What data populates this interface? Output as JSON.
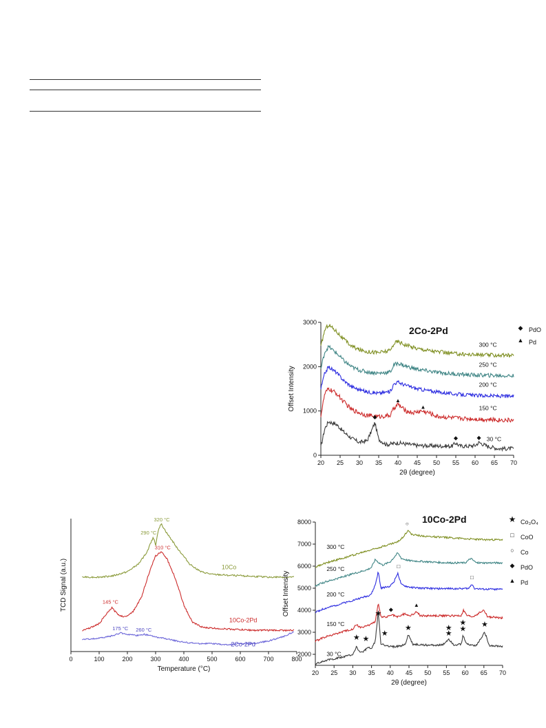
{
  "chart_data": [
    {
      "type": "line",
      "panel_title": "2Co-2Pd",
      "xlabel": "2θ (degree)",
      "ylabel": "Offset Intensity",
      "xlim": [
        20,
        70
      ],
      "ylim": [
        0,
        3000
      ],
      "x_ticks": [
        20,
        25,
        30,
        35,
        40,
        45,
        50,
        55,
        60,
        65,
        70
      ],
      "y_ticks": [
        0,
        1000,
        2000,
        3000
      ],
      "legend": [
        {
          "symbol": "◆",
          "label": "PdO"
        },
        {
          "symbol": "▲",
          "label": "Pd"
        }
      ],
      "series": [
        {
          "name": "30 °C",
          "color": "#3a3a3a",
          "baseline": 180,
          "noise": 45,
          "x": [
            20,
            21,
            22,
            24,
            26,
            28,
            30,
            32,
            33,
            34,
            35,
            37,
            40,
            45,
            50,
            54,
            55,
            56,
            58,
            60,
            61,
            63,
            66,
            70
          ],
          "y": [
            180,
            600,
            760,
            700,
            520,
            380,
            290,
            330,
            520,
            740,
            360,
            240,
            280,
            220,
            210,
            205,
            280,
            210,
            205,
            220,
            290,
            210,
            150,
            150
          ]
        },
        {
          "name": "150 °C",
          "color": "#cc2a2a",
          "baseline": 760,
          "noise": 50,
          "x": [
            20,
            21,
            22,
            24,
            26,
            28,
            30,
            32,
            35,
            38,
            39,
            40,
            42,
            44,
            46,
            48,
            50,
            55,
            60,
            65,
            70
          ],
          "y": [
            900,
            1380,
            1500,
            1400,
            1200,
            1030,
            960,
            900,
            870,
            900,
            1070,
            1150,
            1000,
            960,
            1000,
            960,
            880,
            840,
            820,
            800,
            790
          ]
        },
        {
          "name": "200 °C",
          "color": "#2c2ce0",
          "baseline": 1300,
          "noise": 40,
          "x": [
            20,
            21,
            22,
            24,
            26,
            28,
            30,
            32,
            35,
            38,
            39,
            40,
            42,
            45,
            50,
            55,
            60,
            65,
            70
          ],
          "y": [
            1500,
            1850,
            2000,
            1870,
            1680,
            1550,
            1480,
            1430,
            1400,
            1440,
            1620,
            1650,
            1580,
            1500,
            1430,
            1380,
            1350,
            1340,
            1330
          ]
        },
        {
          "name": "250 °C",
          "color": "#3f8585",
          "baseline": 1750,
          "noise": 45,
          "x": [
            20,
            21,
            22,
            24,
            26,
            28,
            30,
            32,
            35,
            38,
            39,
            40,
            42,
            45,
            50,
            55,
            60,
            65,
            70
          ],
          "y": [
            1950,
            2330,
            2450,
            2310,
            2130,
            1990,
            1920,
            1880,
            1850,
            1880,
            2040,
            2080,
            2010,
            1940,
            1870,
            1830,
            1810,
            1800,
            1790
          ]
        },
        {
          "name": "300 °C",
          "color": "#7f8f22",
          "baseline": 2200,
          "noise": 45,
          "x": [
            20,
            21,
            22,
            24,
            26,
            28,
            30,
            32,
            35,
            38,
            39,
            40,
            42,
            45,
            50,
            55,
            60,
            65,
            70
          ],
          "y": [
            2450,
            2830,
            2950,
            2800,
            2610,
            2460,
            2380,
            2340,
            2320,
            2360,
            2530,
            2570,
            2490,
            2410,
            2340,
            2290,
            2270,
            2260,
            2250
          ]
        }
      ],
      "temperature_labels": [
        {
          "text": "300 °C",
          "x": 61,
          "y": 2450
        },
        {
          "text": "250 °C",
          "x": 61,
          "y": 2000
        },
        {
          "text": "200 °C",
          "x": 61,
          "y": 1550
        },
        {
          "text": "150 °C",
          "x": 61,
          "y": 1020
        },
        {
          "text": "30 °C",
          "x": 63,
          "y": 320
        }
      ],
      "markers": [
        {
          "symbol": "◆",
          "x": 34,
          "y": 820
        },
        {
          "symbol": "◆",
          "x": 55,
          "y": 350
        },
        {
          "symbol": "◆",
          "x": 61,
          "y": 360
        },
        {
          "symbol": "▲",
          "x": 40,
          "y": 1200
        },
        {
          "symbol": "▲",
          "x": 46.5,
          "y": 1050
        }
      ]
    },
    {
      "type": "line",
      "xlabel": "Temperature (°C)",
      "ylabel": "TCD Signal (a.u.)",
      "xlim": [
        0,
        800
      ],
      "ylim": [
        0,
        100
      ],
      "x_ticks": [
        0,
        100,
        200,
        300,
        400,
        500,
        600,
        700,
        800
      ],
      "series": [
        {
          "name": "10Co",
          "color": "#8a9a3a",
          "noise": 0.6,
          "x": [
            40,
            100,
            150,
            200,
            240,
            270,
            285,
            292,
            300,
            310,
            320,
            340,
            380,
            420,
            460,
            500,
            600,
            700,
            790
          ],
          "y": [
            56,
            56,
            57,
            60,
            66,
            75,
            83,
            86,
            80,
            92,
            96,
            89,
            77,
            66,
            60,
            58,
            57,
            56,
            56
          ]
        },
        {
          "name": "10Co-2Pd",
          "color": "#cc2b2b",
          "noise": 0.6,
          "x": [
            40,
            70,
            100,
            125,
            145,
            165,
            190,
            220,
            250,
            275,
            300,
            320,
            340,
            370,
            400,
            430,
            470,
            550,
            650,
            790
          ],
          "y": [
            16,
            18,
            21,
            28,
            33,
            28,
            26,
            30,
            41,
            58,
            72,
            75,
            70,
            55,
            35,
            22,
            18,
            17,
            16,
            16
          ]
        },
        {
          "name": "2Co-2Pd",
          "color": "#6a64d8",
          "noise": 0.5,
          "x": [
            40,
            100,
            150,
            175,
            200,
            230,
            260,
            300,
            350,
            400,
            450,
            500,
            550,
            600,
            650,
            700,
            750,
            790
          ],
          "y": [
            9,
            10,
            12,
            14,
            13,
            12,
            13,
            11,
            9,
            7,
            6,
            6,
            5,
            6,
            6,
            8,
            11,
            15
          ]
        }
      ],
      "peak_labels": [
        {
          "text": "320 °C",
          "x": 322,
          "y": 98,
          "color": "#8a9a3a"
        },
        {
          "text": "290 °C",
          "x": 275,
          "y": 88,
          "color": "#8a9a3a"
        },
        {
          "text": "310 °C",
          "x": 325,
          "y": 77,
          "color": "#cc2b2b"
        },
        {
          "text": "145 °C",
          "x": 140,
          "y": 36,
          "color": "#cc2b2b"
        },
        {
          "text": "175 °C",
          "x": 175,
          "y": 16,
          "color": "#4a44c0"
        },
        {
          "text": "260 °C",
          "x": 258,
          "y": 15,
          "color": "#4a44c0"
        }
      ],
      "series_labels": [
        {
          "text": "10Co",
          "x": 560,
          "y": 62,
          "color": "#8a9a3a"
        },
        {
          "text": "10Co-2Pd",
          "x": 610,
          "y": 22,
          "color": "#cc2b2b"
        },
        {
          "text": "2Co-2Pd",
          "x": 610,
          "y": 4,
          "color": "#4a44c0"
        }
      ]
    },
    {
      "type": "line",
      "panel_title": "10Co-2Pd",
      "xlabel": "2θ (degree)",
      "ylabel": "Offset Intensity",
      "xlim": [
        20,
        70
      ],
      "ylim": [
        1500,
        8000
      ],
      "x_ticks": [
        20,
        25,
        30,
        35,
        40,
        45,
        50,
        55,
        60,
        65,
        70
      ],
      "y_ticks": [
        2000,
        3000,
        4000,
        5000,
        6000,
        7000,
        8000
      ],
      "legend": [
        {
          "symbol": "★",
          "label": "Co₃O₄"
        },
        {
          "symbol": "□",
          "label": "CoO"
        },
        {
          "symbol": "○",
          "label": "Co"
        },
        {
          "symbol": "◆",
          "label": "PdO"
        },
        {
          "symbol": "▲",
          "label": "Pd"
        }
      ],
      "series": [
        {
          "name": "30 °C",
          "color": "#3a3a3a",
          "noise": 45,
          "x": [
            20,
            22,
            25,
            28,
            30,
            31,
            32,
            33,
            34,
            35,
            36,
            36.8,
            37.5,
            38.5,
            40,
            42,
            44,
            44.8,
            46,
            50,
            54,
            55.6,
            57,
            59,
            59.4,
            60.5,
            63,
            65.2,
            66.5,
            70
          ],
          "y": [
            1550,
            1700,
            1800,
            1900,
            2000,
            2350,
            2050,
            2150,
            2300,
            2250,
            2600,
            3950,
            2500,
            2400,
            2350,
            2350,
            2450,
            2900,
            2450,
            2420,
            2420,
            2700,
            2430,
            2450,
            2850,
            2450,
            2400,
            3000,
            2400,
            2350
          ]
        },
        {
          "name": "150 °C",
          "color": "#cc2a2a",
          "noise": 45,
          "x": [
            20,
            22,
            25,
            28,
            30,
            31,
            32,
            34,
            36,
            36.8,
            37.5,
            39,
            40.5,
            42,
            44,
            45,
            46,
            47,
            48,
            50,
            55,
            59,
            59.5,
            60.5,
            62,
            65,
            66,
            70
          ],
          "y": [
            2600,
            2750,
            2900,
            3050,
            3150,
            3350,
            3200,
            3300,
            3500,
            4300,
            3700,
            3700,
            3800,
            3700,
            3850,
            3750,
            3800,
            3950,
            3750,
            3750,
            3750,
            3750,
            4000,
            3750,
            3700,
            4000,
            3700,
            3650
          ]
        },
        {
          "name": "200 °C",
          "color": "#2c2ce0",
          "noise": 40,
          "x": [
            20,
            22,
            25,
            28,
            30,
            32,
            34,
            35,
            36,
            36.8,
            37.5,
            39,
            40,
            41,
            42,
            42.5,
            43,
            45,
            48,
            52,
            58,
            61,
            61.8,
            62.5,
            65,
            70
          ],
          "y": [
            3900,
            4050,
            4200,
            4350,
            4450,
            4550,
            4650,
            4750,
            5150,
            5750,
            5000,
            5050,
            5100,
            5300,
            5700,
            5400,
            5150,
            5050,
            5000,
            4980,
            4980,
            4990,
            5200,
            4990,
            4950,
            4950
          ]
        },
        {
          "name": "250 °C",
          "color": "#3f8585",
          "noise": 40,
          "x": [
            20,
            22,
            25,
            28,
            30,
            32,
            34,
            35,
            36,
            37,
            38,
            40,
            41,
            42,
            43,
            45,
            50,
            55,
            60,
            61.5,
            63,
            65,
            70
          ],
          "y": [
            5100,
            5250,
            5400,
            5550,
            5650,
            5750,
            5850,
            5950,
            6300,
            6150,
            6050,
            6200,
            6400,
            6600,
            6350,
            6250,
            6200,
            6150,
            6150,
            6350,
            6150,
            6150,
            6150
          ]
        },
        {
          "name": "300 °C",
          "color": "#7f8f22",
          "noise": 40,
          "x": [
            20,
            22,
            25,
            28,
            30,
            32,
            35,
            38,
            40,
            42,
            43,
            44,
            44.8,
            45.5,
            47,
            50,
            55,
            60,
            65,
            70
          ],
          "y": [
            5950,
            6100,
            6250,
            6400,
            6500,
            6600,
            6750,
            6900,
            7000,
            7100,
            7250,
            7450,
            7650,
            7450,
            7400,
            7350,
            7300,
            7250,
            7200,
            7200
          ]
        }
      ],
      "temperature_labels": [
        {
          "text": "300 °C",
          "x": 23,
          "y": 6780
        },
        {
          "text": "250 °C",
          "x": 23,
          "y": 5780
        },
        {
          "text": "200 °C",
          "x": 23,
          "y": 4620
        },
        {
          "text": "150 °C",
          "x": 23,
          "y": 3280
        },
        {
          "text": "30 °C",
          "x": 23,
          "y": 1920
        }
      ],
      "markers": [
        {
          "symbol": "★",
          "x": 31,
          "y": 2650
        },
        {
          "symbol": "★",
          "x": 33.5,
          "y": 2600
        },
        {
          "symbol": "★",
          "x": 36.8,
          "y": 3750
        },
        {
          "symbol": "★",
          "x": 38.5,
          "y": 2850
        },
        {
          "symbol": "★",
          "x": 44.8,
          "y": 3100
        },
        {
          "symbol": "★",
          "x": 55.6,
          "y": 2850
        },
        {
          "symbol": "★",
          "x": 55.6,
          "y": 3100
        },
        {
          "symbol": "★",
          "x": 59.4,
          "y": 3050
        },
        {
          "symbol": "★",
          "x": 59.4,
          "y": 3330
        },
        {
          "symbol": "★",
          "x": 65.2,
          "y": 3250
        },
        {
          "symbol": "◆",
          "x": 40.2,
          "y": 3950
        },
        {
          "symbol": "▲",
          "x": 47,
          "y": 4150
        },
        {
          "symbol": "□",
          "x": 42.2,
          "y": 5900
        },
        {
          "symbol": "□",
          "x": 61.8,
          "y": 5400
        },
        {
          "symbol": "○",
          "x": 44.5,
          "y": 7850
        }
      ]
    }
  ]
}
